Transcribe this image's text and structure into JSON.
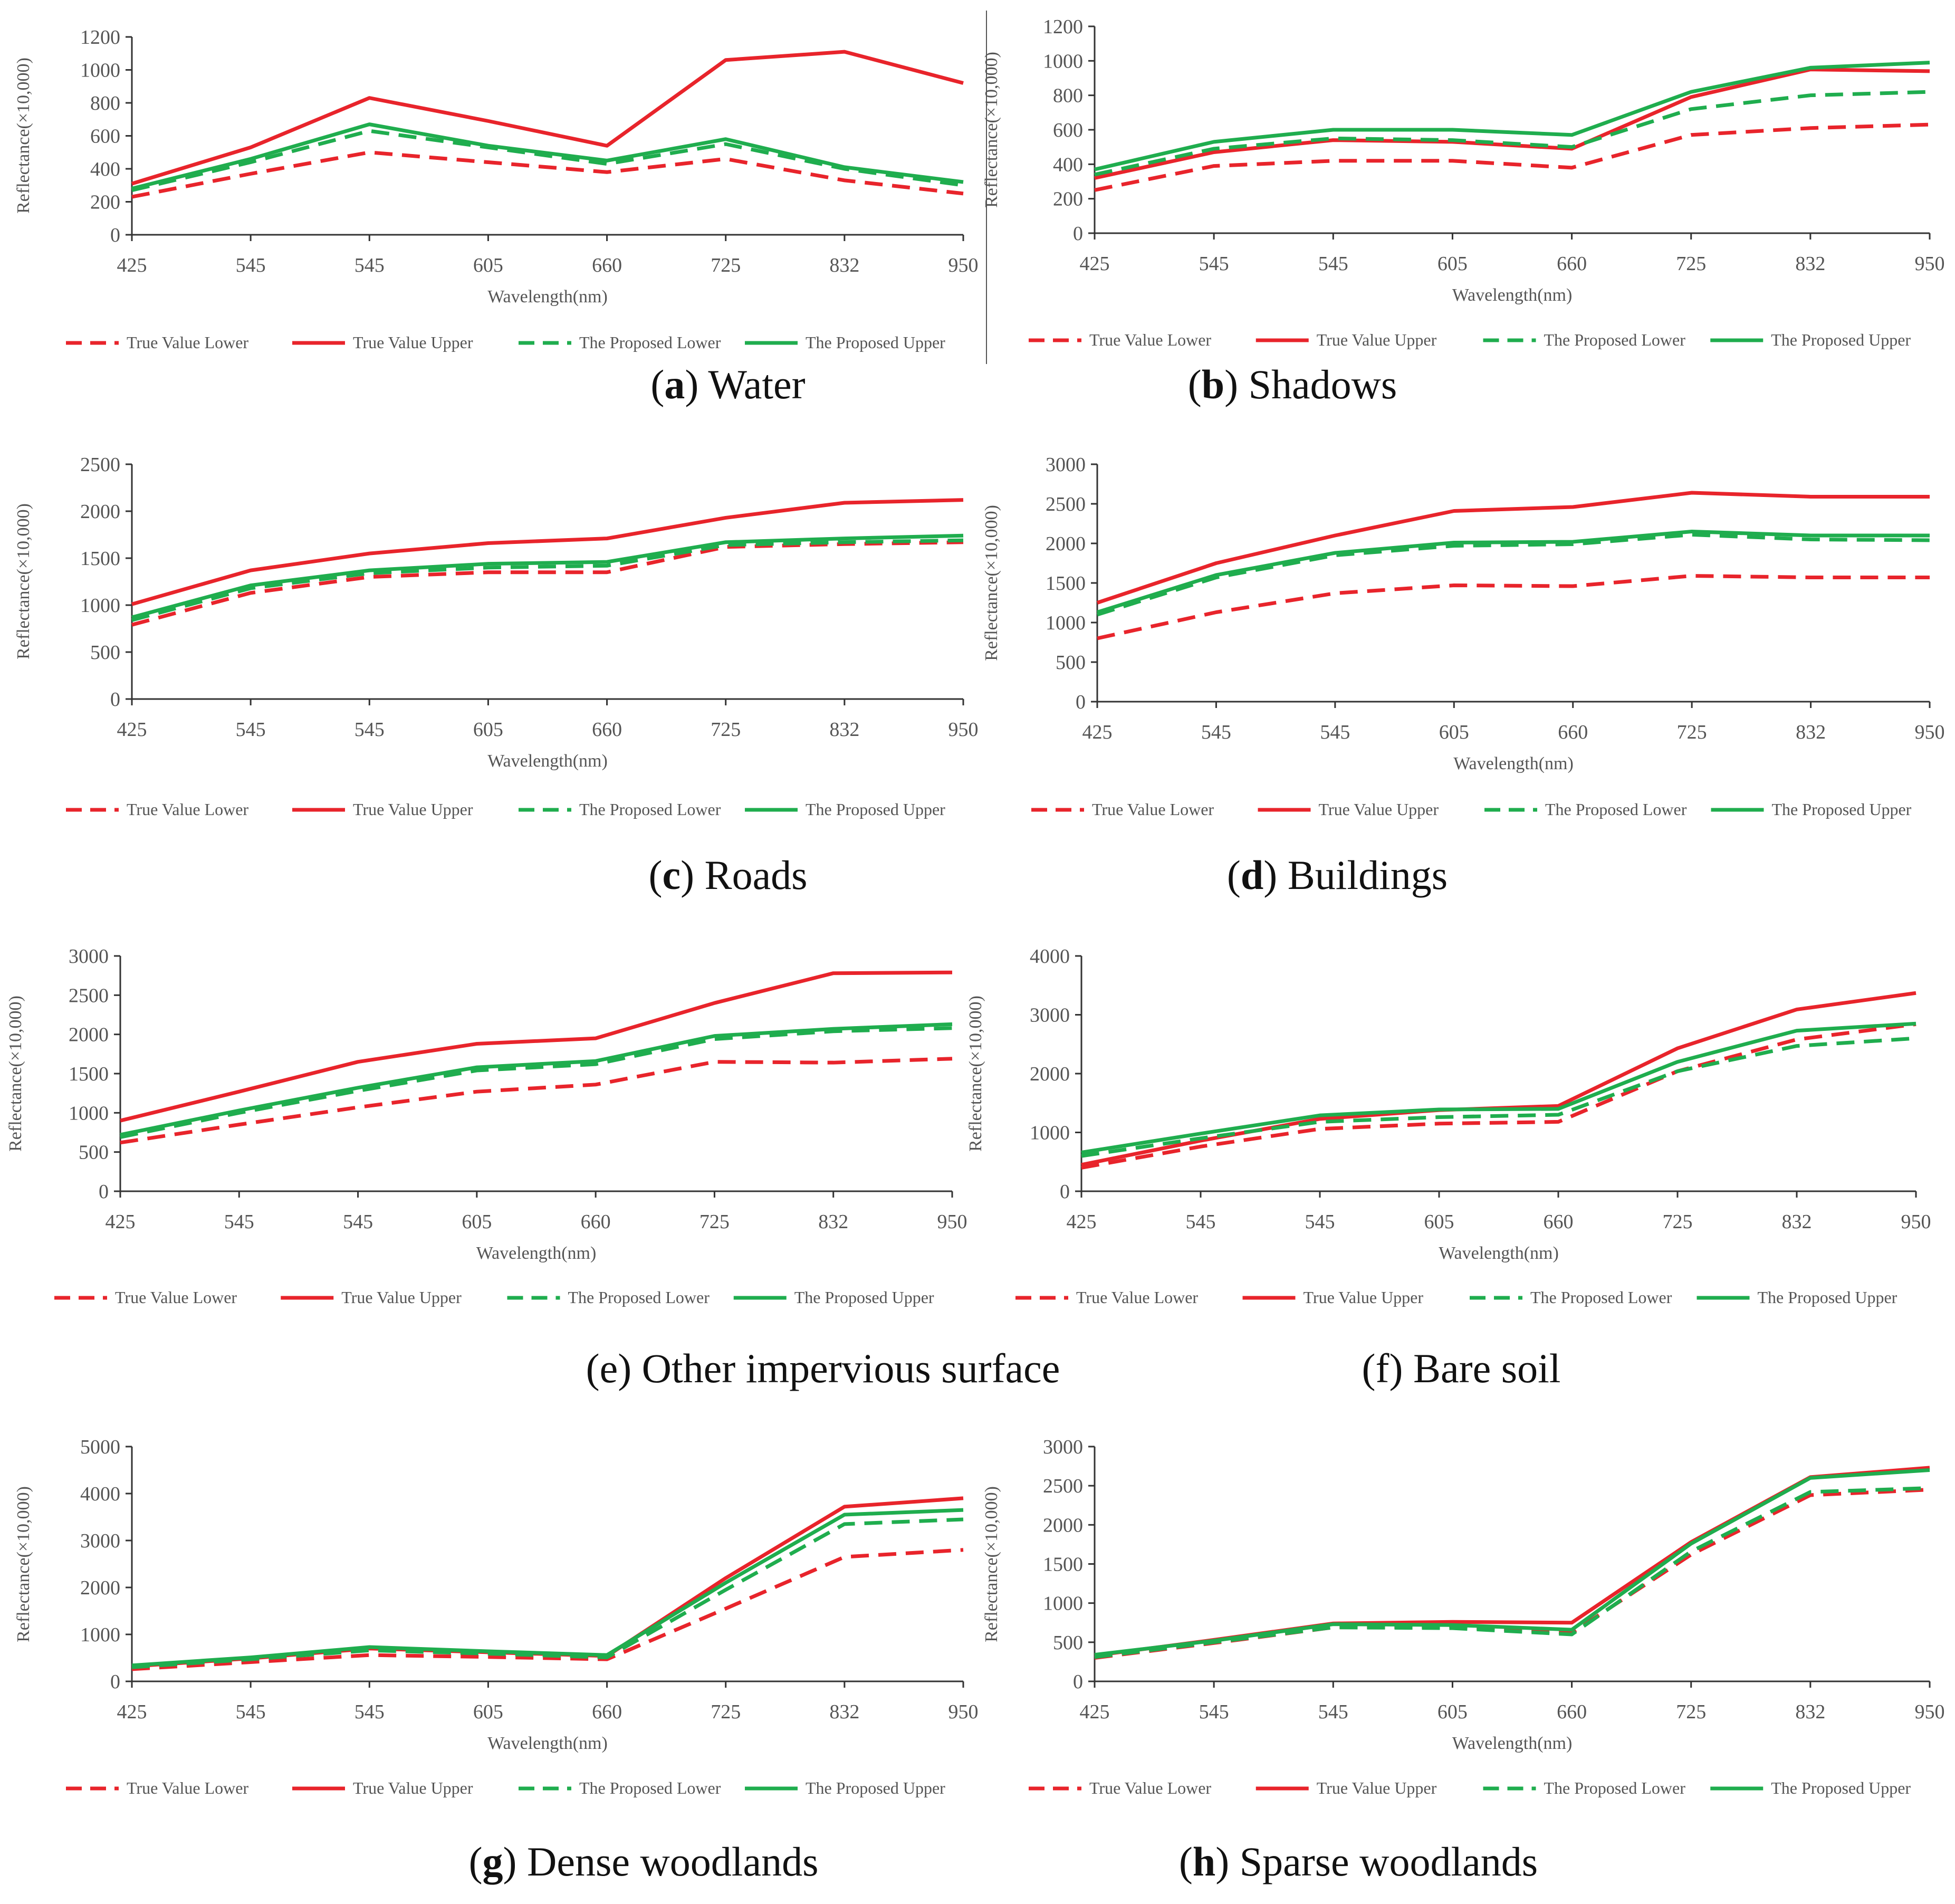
{
  "figure": {
    "panels": [
      {
        "letter": "a",
        "caption_bold": true,
        "caption_rest": " Water"
      },
      {
        "letter": "b",
        "caption_bold": true,
        "caption_rest": " Shadows"
      },
      {
        "letter": "c",
        "caption_bold": true,
        "caption_rest": " Roads"
      },
      {
        "letter": "d",
        "caption_bold": true,
        "caption_rest": " Buildings"
      },
      {
        "letter": "e",
        "caption_bold": false,
        "caption_rest": " Other impervious surface"
      },
      {
        "letter": "f",
        "caption_bold": false,
        "caption_rest": " Bare soil"
      },
      {
        "letter": "g",
        "caption_bold": true,
        "caption_rest": " Dense woodlands"
      },
      {
        "letter": "h",
        "caption_bold": true,
        "caption_rest": " Sparse woodlands"
      }
    ]
  },
  "chart_data": [
    {
      "type": "line",
      "panel": "a",
      "title": "Water",
      "xlabel": "Wavelength(nm)",
      "ylabel": "Reflectance(×10,000)",
      "categories": [
        "425",
        "545",
        "545",
        "605",
        "660",
        "725",
        "832",
        "950"
      ],
      "ylim": [
        0,
        1200
      ],
      "yticks": [
        0,
        200,
        400,
        600,
        800,
        1000,
        1200
      ],
      "series": [
        {
          "name": "True Value Lower",
          "color": "#e8242b",
          "dash": true,
          "values": [
            230,
            370,
            500,
            440,
            380,
            460,
            330,
            250
          ]
        },
        {
          "name": "True Value Upper",
          "color": "#e8242b",
          "dash": false,
          "values": [
            310,
            530,
            830,
            690,
            540,
            1060,
            1110,
            920
          ]
        },
        {
          "name": "The Proposed Lower",
          "color": "#1fad4e",
          "dash": true,
          "values": [
            270,
            440,
            630,
            530,
            430,
            550,
            400,
            300
          ]
        },
        {
          "name": "The Proposed Upper",
          "color": "#1fad4e",
          "dash": false,
          "values": [
            280,
            460,
            670,
            540,
            450,
            580,
            410,
            320
          ]
        }
      ]
    },
    {
      "type": "line",
      "panel": "b",
      "title": "Shadows",
      "xlabel": "Wavelength(nm)",
      "ylabel": "Reflectance(×10,000)",
      "categories": [
        "425",
        "545",
        "545",
        "605",
        "660",
        "725",
        "832",
        "950"
      ],
      "ylim": [
        0,
        1200
      ],
      "yticks": [
        0,
        200,
        400,
        600,
        800,
        1000,
        1200
      ],
      "series": [
        {
          "name": "True Value Lower",
          "color": "#e8242b",
          "dash": true,
          "values": [
            250,
            390,
            420,
            420,
            380,
            570,
            610,
            630
          ]
        },
        {
          "name": "True Value Upper",
          "color": "#e8242b",
          "dash": false,
          "values": [
            320,
            470,
            540,
            530,
            490,
            790,
            950,
            940
          ]
        },
        {
          "name": "The Proposed Lower",
          "color": "#1fad4e",
          "dash": true,
          "values": [
            340,
            490,
            550,
            540,
            500,
            720,
            800,
            820
          ]
        },
        {
          "name": "The Proposed Upper",
          "color": "#1fad4e",
          "dash": false,
          "values": [
            370,
            530,
            600,
            600,
            570,
            820,
            960,
            990
          ]
        }
      ]
    },
    {
      "type": "line",
      "panel": "c",
      "title": "Roads",
      "xlabel": "Wavelength(nm)",
      "ylabel": "Reflectance(×10,000)",
      "categories": [
        "425",
        "545",
        "545",
        "605",
        "660",
        "725",
        "832",
        "950"
      ],
      "ylim": [
        0,
        2500
      ],
      "yticks": [
        0,
        500,
        1000,
        1500,
        2000,
        2500
      ],
      "series": [
        {
          "name": "True Value Lower",
          "color": "#e8242b",
          "dash": true,
          "values": [
            790,
            1130,
            1300,
            1350,
            1350,
            1620,
            1650,
            1670
          ]
        },
        {
          "name": "True Value Upper",
          "color": "#e8242b",
          "dash": false,
          "values": [
            1010,
            1370,
            1550,
            1660,
            1710,
            1930,
            2090,
            2120
          ]
        },
        {
          "name": "The Proposed Lower",
          "color": "#1fad4e",
          "dash": true,
          "values": [
            840,
            1180,
            1340,
            1400,
            1420,
            1640,
            1670,
            1690
          ]
        },
        {
          "name": "The Proposed Upper",
          "color": "#1fad4e",
          "dash": false,
          "values": [
            870,
            1210,
            1370,
            1440,
            1460,
            1670,
            1710,
            1740
          ]
        }
      ]
    },
    {
      "type": "line",
      "panel": "d",
      "title": "Buildings",
      "xlabel": "Wavelength(nm)",
      "ylabel": "Reflectance(×10,000)",
      "categories": [
        "425",
        "545",
        "545",
        "605",
        "660",
        "725",
        "832",
        "950"
      ],
      "ylim": [
        0,
        3000
      ],
      "yticks": [
        0,
        500,
        1000,
        1500,
        2000,
        2500,
        3000
      ],
      "series": [
        {
          "name": "True Value Lower",
          "color": "#e8242b",
          "dash": true,
          "values": [
            800,
            1130,
            1370,
            1470,
            1460,
            1590,
            1570,
            1570
          ]
        },
        {
          "name": "True Value Upper",
          "color": "#e8242b",
          "dash": false,
          "values": [
            1250,
            1750,
            2100,
            2410,
            2460,
            2640,
            2590,
            2590
          ]
        },
        {
          "name": "The Proposed Lower",
          "color": "#1fad4e",
          "dash": true,
          "values": [
            1100,
            1570,
            1850,
            1970,
            1990,
            2110,
            2050,
            2040
          ]
        },
        {
          "name": "The Proposed Upper",
          "color": "#1fad4e",
          "dash": false,
          "values": [
            1130,
            1600,
            1880,
            2010,
            2020,
            2150,
            2100,
            2100
          ]
        }
      ]
    },
    {
      "type": "line",
      "panel": "e",
      "title": "Other impervious surface",
      "xlabel": "Wavelength(nm)",
      "ylabel": "Reflectance(×10,000)",
      "categories": [
        "425",
        "545",
        "545",
        "605",
        "660",
        "725",
        "832",
        "950"
      ],
      "ylim": [
        0,
        3000
      ],
      "yticks": [
        0,
        500,
        1000,
        1500,
        2000,
        2500,
        3000
      ],
      "series": [
        {
          "name": "True Value Lower",
          "color": "#e8242b",
          "dash": true,
          "values": [
            620,
            850,
            1070,
            1270,
            1360,
            1650,
            1640,
            1690
          ]
        },
        {
          "name": "True Value Upper",
          "color": "#e8242b",
          "dash": false,
          "values": [
            900,
            1270,
            1650,
            1880,
            1950,
            2400,
            2780,
            2790
          ]
        },
        {
          "name": "The Proposed Lower",
          "color": "#1fad4e",
          "dash": true,
          "values": [
            690,
            1000,
            1280,
            1540,
            1620,
            1940,
            2040,
            2080
          ]
        },
        {
          "name": "The Proposed Upper",
          "color": "#1fad4e",
          "dash": false,
          "values": [
            720,
            1030,
            1320,
            1580,
            1660,
            1980,
            2070,
            2130
          ]
        }
      ]
    },
    {
      "type": "line",
      "panel": "f",
      "title": "Bare soil",
      "xlabel": "Wavelength(nm)",
      "ylabel": "Reflectance(×10,000)",
      "categories": [
        "425",
        "545",
        "545",
        "605",
        "660",
        "725",
        "832",
        "950"
      ],
      "ylim": [
        0,
        4000
      ],
      "yticks": [
        0,
        1000,
        2000,
        3000,
        4000
      ],
      "series": [
        {
          "name": "True Value Lower",
          "color": "#e8242b",
          "dash": true,
          "values": [
            400,
            760,
            1060,
            1150,
            1180,
            2040,
            2580,
            2840
          ]
        },
        {
          "name": "True Value Upper",
          "color": "#e8242b",
          "dash": false,
          "values": [
            450,
            860,
            1230,
            1380,
            1450,
            2430,
            3090,
            3370
          ]
        },
        {
          "name": "The Proposed Lower",
          "color": "#1fad4e",
          "dash": true,
          "values": [
            600,
            900,
            1180,
            1260,
            1300,
            2040,
            2470,
            2600
          ]
        },
        {
          "name": "The Proposed Upper",
          "color": "#1fad4e",
          "dash": false,
          "values": [
            660,
            980,
            1290,
            1390,
            1400,
            2200,
            2730,
            2850
          ]
        }
      ]
    },
    {
      "type": "line",
      "panel": "g",
      "title": "Dense woodlands",
      "xlabel": "Wavelength(nm)",
      "ylabel": "Reflectance(×10,000)",
      "categories": [
        "425",
        "545",
        "545",
        "605",
        "660",
        "725",
        "832",
        "950"
      ],
      "ylim": [
        0,
        5000
      ],
      "yticks": [
        0,
        1000,
        2000,
        3000,
        4000,
        5000
      ],
      "series": [
        {
          "name": "True Value Lower",
          "color": "#e8242b",
          "dash": true,
          "values": [
            260,
            410,
            560,
            520,
            470,
            1550,
            2650,
            2800
          ]
        },
        {
          "name": "True Value Upper",
          "color": "#e8242b",
          "dash": false,
          "values": [
            320,
            490,
            700,
            620,
            540,
            2200,
            3720,
            3900
          ]
        },
        {
          "name": "The Proposed Lower",
          "color": "#1fad4e",
          "dash": true,
          "values": [
            300,
            470,
            660,
            590,
            510,
            1950,
            3350,
            3450
          ]
        },
        {
          "name": "The Proposed Upper",
          "color": "#1fad4e",
          "dash": false,
          "values": [
            340,
            510,
            730,
            640,
            560,
            2100,
            3550,
            3650
          ]
        }
      ]
    },
    {
      "type": "line",
      "panel": "h",
      "title": "Sparse woodlands",
      "xlabel": "Wavelength(nm)",
      "ylabel": "Reflectance(×10,000)",
      "categories": [
        "425",
        "545",
        "545",
        "605",
        "660",
        "725",
        "832",
        "950"
      ],
      "ylim": [
        0,
        3000
      ],
      "yticks": [
        0,
        500,
        1000,
        1500,
        2000,
        2500,
        3000
      ],
      "series": [
        {
          "name": "True Value Lower",
          "color": "#e8242b",
          "dash": true,
          "values": [
            300,
            490,
            690,
            700,
            620,
            1620,
            2380,
            2450
          ]
        },
        {
          "name": "True Value Upper",
          "color": "#e8242b",
          "dash": false,
          "values": [
            330,
            530,
            740,
            760,
            750,
            1780,
            2610,
            2730
          ]
        },
        {
          "name": "The Proposed Lower",
          "color": "#1fad4e",
          "dash": true,
          "values": [
            310,
            500,
            690,
            680,
            600,
            1660,
            2420,
            2470
          ]
        },
        {
          "name": "The Proposed Upper",
          "color": "#1fad4e",
          "dash": false,
          "values": [
            340,
            520,
            730,
            720,
            660,
            1760,
            2600,
            2700
          ]
        }
      ]
    }
  ]
}
